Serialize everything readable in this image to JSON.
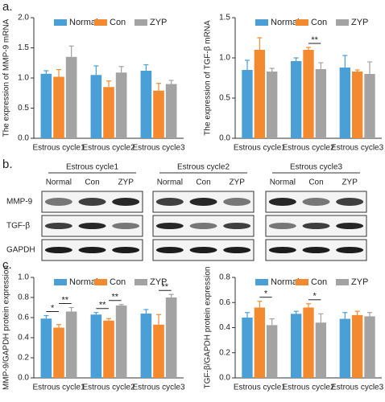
{
  "panel_labels": [
    "a.",
    "b.",
    "c."
  ],
  "blot": {
    "groups": [
      "Estrous cycle1",
      "Estrous cycle2",
      "Estrous cycle3"
    ],
    "lanes": [
      "Normal",
      "Con",
      "ZYP"
    ],
    "rows": [
      "MMP-9",
      "TGF-β",
      "GAPDH"
    ]
  },
  "chart_data": [
    {
      "type": "bar",
      "ylabel": "The expression of MMP-9 mRNA",
      "categories": [
        "Estrous cycle1",
        "Estrous cycle2",
        "Estrous cycle3"
      ],
      "series": [
        {
          "name": "Normal",
          "color": "#4a9fd6",
          "values": [
            1.07,
            1.05,
            1.12
          ],
          "errors": [
            0.05,
            0.15,
            0.1
          ]
        },
        {
          "name": "Con",
          "color": "#f48a2f",
          "values": [
            1.02,
            0.85,
            0.79
          ],
          "errors": [
            0.12,
            0.1,
            0.12
          ]
        },
        {
          "name": "ZYP",
          "color": "#a3a3a3",
          "values": [
            1.35,
            1.09,
            0.9
          ],
          "errors": [
            0.18,
            0.1,
            0.06
          ]
        }
      ],
      "ylim": [
        0,
        2.0
      ],
      "yticks": [
        {
          "value": 0,
          "label": "0.0"
        },
        0.5,
        {
          "value": 1.0,
          "label": "1.0"
        },
        1.5,
        {
          "value": 2.0,
          "label": "2.0"
        }
      ],
      "annotations": []
    },
    {
      "type": "bar",
      "ylabel": "The expression of TGF-β mRNA",
      "categories": [
        "Estrous cycle1",
        "Estrous cycle2",
        "Estrous cycle3"
      ],
      "series": [
        {
          "name": "Normal",
          "color": "#4a9fd6",
          "values": [
            0.85,
            0.96,
            0.88
          ],
          "errors": [
            0.12,
            0.04,
            0.15
          ]
        },
        {
          "name": "Con",
          "color": "#f48a2f",
          "values": [
            1.1,
            1.1,
            0.83
          ],
          "errors": [
            0.15,
            0.03,
            0.02
          ]
        },
        {
          "name": "ZYP",
          "color": "#a3a3a3",
          "values": [
            0.83,
            0.86,
            0.8
          ],
          "errors": [
            0.04,
            0.08,
            0.15
          ]
        }
      ],
      "ylim": [
        0,
        1.5
      ],
      "yticks": [
        {
          "value": 0,
          "label": "0.0"
        },
        0.5,
        {
          "value": 1.0,
          "label": "1.0"
        },
        1.5
      ],
      "annotations": [
        {
          "text": "**",
          "category": "Estrous cycle2",
          "between": [
            "Con",
            "ZYP"
          ]
        }
      ]
    },
    {
      "type": "bar",
      "ylabel": "MMP-9/GAPDH protein expression",
      "categories": [
        "Estrous cycle1",
        "Estrous cycle2",
        "Estrous cycle3"
      ],
      "series": [
        {
          "name": "Normal",
          "color": "#4a9fd6",
          "values": [
            0.59,
            0.63,
            0.64
          ],
          "errors": [
            0.03,
            0.02,
            0.04
          ]
        },
        {
          "name": "Con",
          "color": "#f48a2f",
          "values": [
            0.5,
            0.57,
            0.53
          ],
          "errors": [
            0.03,
            0.02,
            0.1
          ]
        },
        {
          "name": "ZYP",
          "color": "#a3a3a3",
          "values": [
            0.66,
            0.72,
            0.8
          ],
          "errors": [
            0.04,
            0.01,
            0.03
          ]
        }
      ],
      "ylim": [
        0,
        1.0
      ],
      "yticks": [
        {
          "value": 0,
          "label": "0.0"
        },
        0.2,
        0.4,
        0.6,
        0.8,
        {
          "value": 1.0,
          "label": "1.0"
        }
      ],
      "annotations": [
        {
          "text": "*",
          "category": "Estrous cycle1",
          "between": [
            "Normal",
            "Con"
          ]
        },
        {
          "text": "**",
          "category": "Estrous cycle1",
          "between": [
            "Con",
            "ZYP"
          ]
        },
        {
          "text": "**",
          "category": "Estrous cycle2",
          "between": [
            "Normal",
            "Con"
          ]
        },
        {
          "text": "**",
          "category": "Estrous cycle2",
          "between": [
            "Con",
            "ZYP"
          ]
        },
        {
          "text": "**",
          "category": "Estrous cycle3",
          "between": [
            "Con",
            "ZYP"
          ]
        }
      ]
    },
    {
      "type": "bar",
      "ylabel": "TGF-β/GAPDH protein expression",
      "categories": [
        "Estrous cycle1",
        "Estrous cycle2",
        "Estrous cycle3"
      ],
      "series": [
        {
          "name": "Normal",
          "color": "#4a9fd6",
          "values": [
            0.48,
            0.51,
            0.47
          ],
          "errors": [
            0.04,
            0.02,
            0.05
          ]
        },
        {
          "name": "Con",
          "color": "#f48a2f",
          "values": [
            0.56,
            0.56,
            0.5
          ],
          "errors": [
            0.05,
            0.03,
            0.03
          ]
        },
        {
          "name": "ZYP",
          "color": "#a3a3a3",
          "values": [
            0.42,
            0.44,
            0.49
          ],
          "errors": [
            0.05,
            0.07,
            0.03
          ]
        }
      ],
      "ylim": [
        0,
        0.8
      ],
      "yticks": [
        {
          "value": 0,
          "label": "0.0"
        },
        0.2,
        0.4,
        0.6,
        0.8
      ],
      "annotations": [
        {
          "text": "*",
          "category": "Estrous cycle1",
          "between": [
            "Con",
            "ZYP"
          ]
        },
        {
          "text": "*",
          "category": "Estrous cycle2",
          "between": [
            "Con",
            "ZYP"
          ]
        }
      ]
    }
  ]
}
